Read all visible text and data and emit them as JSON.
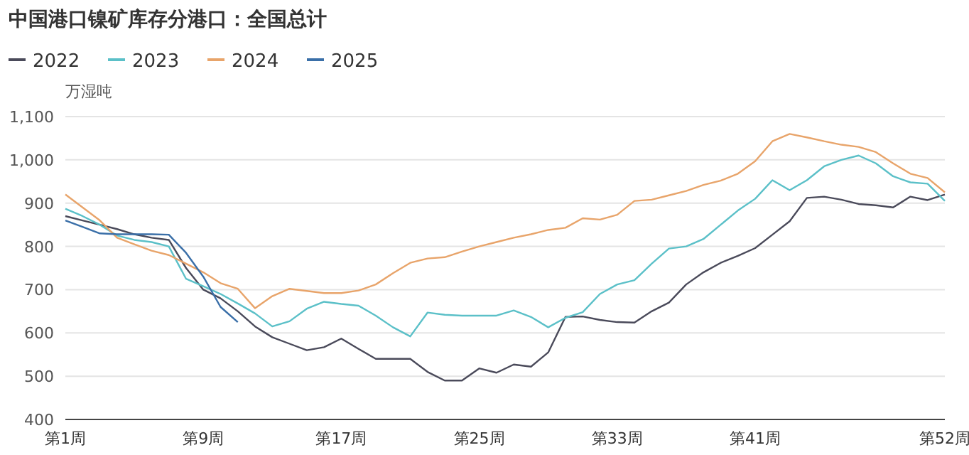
{
  "chart_data": {
    "type": "line",
    "title": "中国港口镍矿库存分港口：全国总计",
    "ylabel": "万湿吨",
    "categories": [
      "第1周",
      null,
      null,
      null,
      null,
      null,
      null,
      null,
      "第9周",
      null,
      null,
      null,
      null,
      null,
      null,
      null,
      "第17周",
      null,
      null,
      null,
      null,
      null,
      null,
      null,
      "第25周",
      null,
      null,
      null,
      null,
      null,
      null,
      null,
      "第33周",
      null,
      null,
      null,
      null,
      null,
      null,
      null,
      "第41周",
      null,
      null,
      null,
      null,
      null,
      null,
      null,
      null,
      null,
      null,
      "第52周"
    ],
    "ylim": [
      400,
      1100
    ],
    "yticks": [
      400,
      500,
      600,
      700,
      800,
      900,
      {
        "value": 1000,
        "label": "1,000"
      },
      {
        "value": 1100,
        "label": "1,100"
      }
    ],
    "grid": "y",
    "legend": "top left",
    "marker": "none",
    "line_style": "solid",
    "series": [
      {
        "name": "2022",
        "color": "#4a4a5a",
        "values": [
          870,
          860,
          850,
          840,
          828,
          820,
          815,
          750,
          700,
          680,
          650,
          615,
          590,
          575,
          560,
          567,
          587,
          563,
          540,
          540,
          540,
          510,
          490,
          490,
          518,
          508,
          527,
          522,
          555,
          637,
          638,
          630,
          625,
          624,
          650,
          670,
          712,
          740,
          762,
          778,
          796,
          827,
          858,
          912,
          915,
          908,
          898,
          895,
          890,
          915,
          907,
          920
        ]
      },
      {
        "name": "2023",
        "color": "#5bc0c8",
        "values": [
          887,
          870,
          850,
          825,
          815,
          810,
          800,
          725,
          708,
          690,
          668,
          645,
          615,
          627,
          656,
          672,
          667,
          663,
          640,
          613,
          592,
          647,
          642,
          640,
          640,
          640,
          652,
          637,
          613,
          635,
          648,
          690,
          712,
          722,
          760,
          795,
          800,
          817,
          850,
          883,
          910,
          953,
          930,
          953,
          985,
          1000,
          1010,
          992,
          962,
          948,
          945,
          905
        ]
      },
      {
        "name": "2024",
        "color": "#e8a46a",
        "values": [
          920,
          890,
          860,
          820,
          805,
          790,
          780,
          760,
          740,
          715,
          702,
          657,
          685,
          702,
          697,
          692,
          692,
          698,
          712,
          738,
          762,
          772,
          775,
          788,
          800,
          810,
          820,
          828,
          838,
          843,
          865,
          862,
          873,
          905,
          908,
          918,
          928,
          942,
          952,
          968,
          997,
          1043,
          1060,
          1052,
          1043,
          1035,
          1030,
          1018,
          992,
          968,
          958,
          925
        ]
      },
      {
        "name": "2025",
        "color": "#3a6fa8",
        "values": [
          860,
          845,
          830,
          828,
          828,
          828,
          827,
          785,
          730,
          660,
          625,
          null,
          null,
          null,
          null,
          null,
          null,
          null,
          null,
          null,
          null,
          null,
          null,
          null,
          null,
          null,
          null,
          null,
          null,
          null,
          null,
          null,
          null,
          null,
          null,
          null,
          null,
          null,
          null,
          null,
          null,
          null,
          null,
          null,
          null,
          null,
          null,
          null,
          null,
          null,
          null,
          null
        ]
      }
    ]
  }
}
